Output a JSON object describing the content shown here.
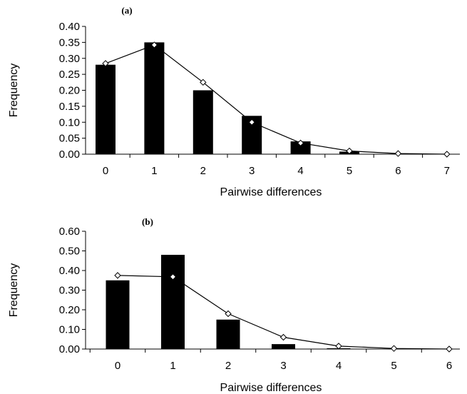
{
  "chart_data": [
    {
      "type": "bar",
      "panel_label": "(a)",
      "xlabel": "Pairwise differences",
      "ylabel": "Frequency",
      "categories": [
        "0",
        "1",
        "2",
        "3",
        "4",
        "5",
        "6",
        "7"
      ],
      "ylim": [
        0,
        0.4
      ],
      "yticks": [
        "0.00",
        "0.05",
        "0.10",
        "0.15",
        "0.20",
        "0.25",
        "0.30",
        "0.35",
        "0.40"
      ],
      "series": [
        {
          "kind": "bar",
          "values": [
            0.28,
            0.35,
            0.2,
            0.12,
            0.04,
            0.008,
            0.0,
            0.0
          ]
        },
        {
          "kind": "line",
          "values": [
            0.284,
            0.342,
            0.225,
            0.1,
            0.035,
            0.01,
            0.002,
            0.0
          ]
        }
      ],
      "grid": false,
      "colors": {
        "bar": "#000000",
        "line": "#000000",
        "marker_fill": "#ffffff"
      }
    },
    {
      "type": "bar",
      "panel_label": "(b)",
      "xlabel": "Pairwise differences",
      "ylabel": "Frequency",
      "categories": [
        "0",
        "1",
        "2",
        "3",
        "4",
        "5",
        "6"
      ],
      "ylim": [
        0,
        0.6
      ],
      "yticks": [
        "0.00",
        "0.10",
        "0.20",
        "0.30",
        "0.40",
        "0.50",
        "0.60"
      ],
      "series": [
        {
          "kind": "bar",
          "values": [
            0.35,
            0.48,
            0.15,
            0.025,
            0.004,
            0.0,
            0.0
          ]
        },
        {
          "kind": "line",
          "values": [
            0.375,
            0.368,
            0.18,
            0.06,
            0.015,
            0.003,
            0.0
          ]
        }
      ],
      "grid": false,
      "colors": {
        "bar": "#000000",
        "line": "#000000",
        "marker_fill": "#ffffff"
      }
    }
  ]
}
